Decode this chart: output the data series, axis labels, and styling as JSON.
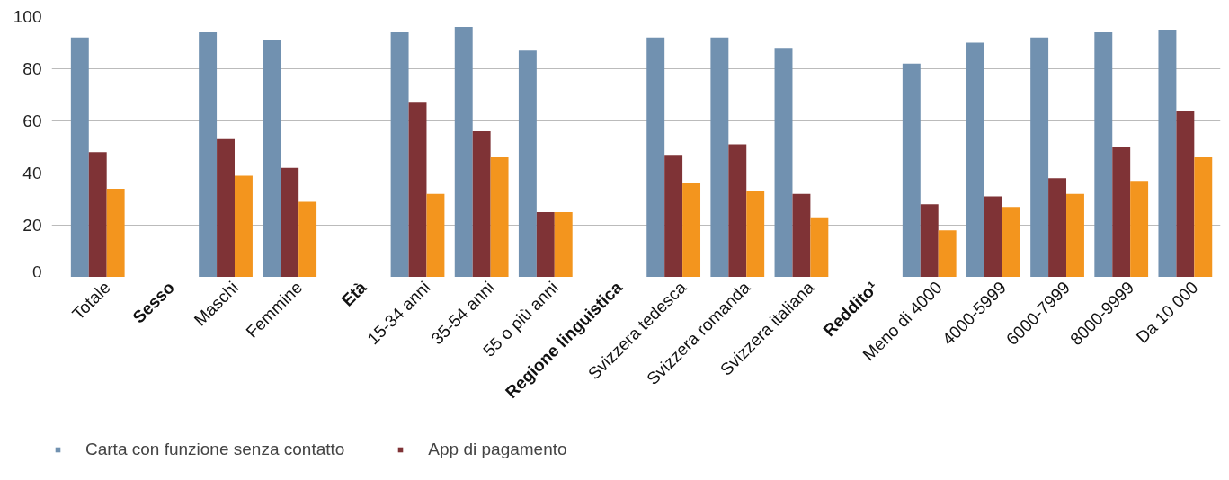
{
  "chart_data": {
    "type": "bar",
    "categories": [
      "Totale",
      "Sesso",
      "Maschi",
      "Femmine",
      "Età",
      "15-34 anni",
      "35-54 anni",
      "55 o più anni",
      "Regione linguistica",
      "Svizzera tedesca",
      "Svizzera romanda",
      "Svizzera italiana",
      "Reddito¹",
      "Meno di 4000",
      "4000-5999",
      "6000-7999",
      "8000-9999",
      "Da 10 000"
    ],
    "series": [
      {
        "name": "Carta con funzione senza contatto",
        "color": "#7191b0",
        "values": [
          92,
          null,
          94,
          91,
          null,
          94,
          96,
          87,
          null,
          92,
          92,
          88,
          null,
          82,
          90,
          92,
          94,
          95
        ]
      },
      {
        "name": "App di pagamento",
        "color": "#7f3336",
        "values": [
          48,
          null,
          53,
          42,
          null,
          67,
          56,
          25,
          null,
          47,
          51,
          32,
          null,
          28,
          31,
          38,
          50,
          64
        ]
      },
      {
        "color": "#f3951e",
        "values": [
          34,
          null,
          39,
          29,
          null,
          32,
          46,
          25,
          null,
          36,
          33,
          23,
          null,
          18,
          27,
          32,
          37,
          46
        ]
      }
    ],
    "ylim": [
      0,
      100
    ],
    "yticks": [
      0,
      20,
      40,
      60,
      80,
      100
    ],
    "grid": "y",
    "legend": "bottom"
  }
}
